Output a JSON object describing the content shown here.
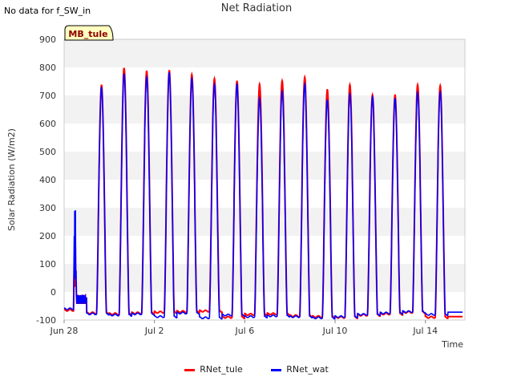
{
  "header": {
    "nodata_text": "No data for f_SW_in",
    "title": "Net Radiation"
  },
  "site_tag": "MB_tule",
  "chart_data": {
    "type": "line",
    "title": "Net Radiation",
    "xlabel": "Time",
    "ylabel": "Solar Radiation (W/m2)",
    "ylim": [
      -100,
      900
    ],
    "yticks": [
      -100,
      0,
      100,
      200,
      300,
      400,
      500,
      600,
      700,
      800,
      900
    ],
    "xlim": [
      "2023-06-28",
      "2023-07-15 18:00"
    ],
    "xticks": [
      "Jun 28",
      "Jul 2",
      "Jul 6",
      "Jul 10",
      "Jul 14"
    ],
    "grid": "horizontal bands",
    "legend_position": "bottom",
    "x": [
      "Jun 28",
      "Jun 29",
      "Jun 30",
      "Jul 1",
      "Jul 2",
      "Jul 3",
      "Jul 4",
      "Jul 5",
      "Jul 6",
      "Jul 7",
      "Jul 8",
      "Jul 9",
      "Jul 10",
      "Jul 11",
      "Jul 12",
      "Jul 13",
      "Jul 14",
      "Jul 15"
    ],
    "series": [
      {
        "name": "RNet_tule",
        "color": "#ff0000",
        "daily_peak": [
          215,
          738,
          798,
          788,
          790,
          775,
          760,
          752,
          740,
          752,
          765,
          722,
          738,
          702,
          703,
          738,
          735,
          null
        ],
        "daily_min": [
          -65,
          -75,
          -78,
          -75,
          -72,
          -70,
          -68,
          -90,
          -80,
          -78,
          -85,
          -88,
          -90,
          -82,
          -78,
          -72,
          -90,
          -88
        ]
      },
      {
        "name": "RNet_wat",
        "color": "#0000ff",
        "daily_peak": [
          370,
          730,
          778,
          765,
          782,
          760,
          740,
          738,
          690,
          715,
          740,
          685,
          705,
          695,
          690,
          710,
          712,
          null
        ],
        "daily_min": [
          -60,
          -78,
          -82,
          -78,
          -88,
          -75,
          -92,
          -82,
          -88,
          -85,
          -88,
          -92,
          -88,
          -80,
          -75,
          -70,
          -80,
          -72
        ]
      }
    ]
  },
  "legend": {
    "items": [
      {
        "label": "RNet_tule",
        "color": "#ff0000"
      },
      {
        "label": "RNet_wat",
        "color": "#0000ff"
      }
    ]
  }
}
